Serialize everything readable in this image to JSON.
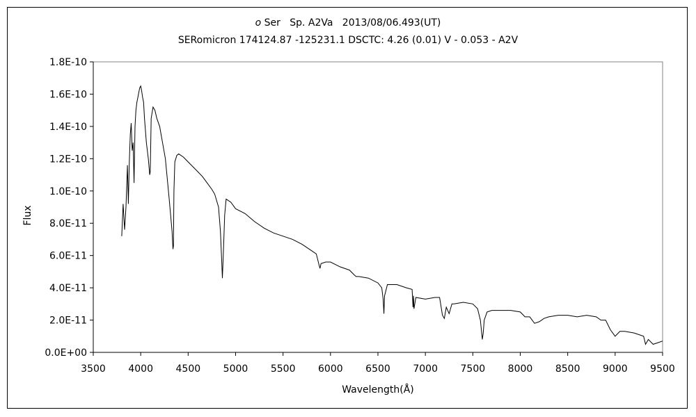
{
  "chart_data": {
    "type": "line",
    "title": {
      "star": "o",
      "rest": " Ser   Sp. A2Va   2013/08/06.493(UT)"
    },
    "subtitle": "SERomicron 174124.87 -125231.1 DSCTC: 4.26 (0.01) V - 0.053 - A2V",
    "xlabel": "Wavelength(Å)",
    "ylabel": "Flux",
    "xlim": [
      3500,
      9500
    ],
    "ylim": [
      0,
      1.8e-10
    ],
    "xticks": [
      "3500",
      "4000",
      "4500",
      "5000",
      "5500",
      "6000",
      "6500",
      "7000",
      "7500",
      "8000",
      "8500",
      "9000",
      "9500"
    ],
    "yticks": [
      "0.0E+00",
      "2.0E-11",
      "4.0E-11",
      "6.0E-11",
      "8.0E-11",
      "1.0E-10",
      "1.2E-10",
      "1.4E-10",
      "1.6E-10",
      "1.8E-10"
    ],
    "grid": false,
    "legend": "none",
    "line_color": "#000000",
    "series": [
      {
        "x": [
          3800,
          3815,
          3830,
          3845,
          3860,
          3870,
          3880,
          3890,
          3900,
          3910,
          3920,
          3930,
          3940,
          3950,
          3960,
          3970,
          3980,
          3990,
          4000,
          4010,
          4020,
          4030,
          4040,
          4060,
          4080,
          4095,
          4101,
          4110,
          4130,
          4150,
          4170,
          4200,
          4230,
          4260,
          4300,
          4330,
          4340,
          4345,
          4350,
          4360,
          4380,
          4400,
          4450,
          4500,
          4550,
          4600,
          4650,
          4700,
          4750,
          4780,
          4820,
          4840,
          4855,
          4861,
          4870,
          4885,
          4900,
          4950,
          5000,
          5100,
          5200,
          5300,
          5400,
          5500,
          5600,
          5700,
          5800,
          5850,
          5880,
          5890,
          5900,
          5950,
          6000,
          6100,
          6200,
          6250,
          6270,
          6280,
          6300,
          6400,
          6500,
          6540,
          6555,
          6563,
          6570,
          6600,
          6700,
          6800,
          6860,
          6870,
          6875,
          6880,
          6900,
          7000,
          7100,
          7150,
          7180,
          7200,
          7220,
          7250,
          7280,
          7300,
          7400,
          7500,
          7550,
          7580,
          7600,
          7610,
          7620,
          7650,
          7700,
          7800,
          7900,
          8000,
          8050,
          8100,
          8150,
          8200,
          8250,
          8300,
          8400,
          8500,
          8600,
          8700,
          8800,
          8850,
          8900,
          8950,
          9000,
          9050,
          9100,
          9200,
          9300,
          9320,
          9350,
          9400,
          9450,
          9500
        ],
        "y": [
          7.2e-11,
          9.2e-11,
          7.6e-11,
          9e-11,
          1.16e-10,
          9.2e-11,
          1.18e-10,
          1.35e-10,
          1.42e-10,
          1.25e-10,
          1.3e-10,
          1.05e-10,
          1.4e-10,
          1.5e-10,
          1.55e-10,
          1.58e-10,
          1.61e-10,
          1.64e-10,
          1.65e-10,
          1.62e-10,
          1.58e-10,
          1.55e-10,
          1.45e-10,
          1.3e-10,
          1.2e-10,
          1.1e-10,
          1.12e-10,
          1.45e-10,
          1.52e-10,
          1.5e-10,
          1.45e-10,
          1.4e-10,
          1.3e-10,
          1.2e-10,
          9.5e-11,
          7.5e-11,
          6.4e-11,
          6.6e-11,
          1e-10,
          1.18e-10,
          1.22e-10,
          1.23e-10,
          1.21e-10,
          1.18e-10,
          1.15e-10,
          1.12e-10,
          1.09e-10,
          1.05e-10,
          1.01e-10,
          9.8e-11,
          9e-11,
          7.5e-11,
          5.5e-11,
          4.6e-11,
          6e-11,
          8.5e-11,
          9.5e-11,
          9.3e-11,
          8.9e-11,
          8.6e-11,
          8.1e-11,
          7.7e-11,
          7.4e-11,
          7.2e-11,
          7e-11,
          6.7e-11,
          6.3e-11,
          6.1e-11,
          5.4e-11,
          5.2e-11,
          5.5e-11,
          5.6e-11,
          5.6e-11,
          5.3e-11,
          5.1e-11,
          4.8e-11,
          4.7e-11,
          4.7e-11,
          4.7e-11,
          4.6e-11,
          4.3e-11,
          4e-11,
          3.3e-11,
          2.4e-11,
          3.5e-11,
          4.2e-11,
          4.2e-11,
          4e-11,
          3.9e-11,
          2.8e-11,
          3.5e-11,
          2.7e-11,
          3.4e-11,
          3.3e-11,
          3.4e-11,
          3.4e-11,
          2.3e-11,
          2.1e-11,
          2.8e-11,
          2.4e-11,
          3e-11,
          3e-11,
          3.1e-11,
          3e-11,
          2.7e-11,
          2e-11,
          8e-12,
          1.2e-11,
          2e-11,
          2.5e-11,
          2.6e-11,
          2.6e-11,
          2.6e-11,
          2.5e-11,
          2.2e-11,
          2.2e-11,
          1.8e-11,
          1.9e-11,
          2.1e-11,
          2.2e-11,
          2.3e-11,
          2.3e-11,
          2.2e-11,
          2.3e-11,
          2.2e-11,
          2e-11,
          2e-11,
          1.4e-11,
          1e-11,
          1.3e-11,
          1.3e-11,
          1.2e-11,
          1e-11,
          5e-12,
          8e-12,
          5e-12,
          6e-12,
          7e-12
        ]
      }
    ]
  }
}
